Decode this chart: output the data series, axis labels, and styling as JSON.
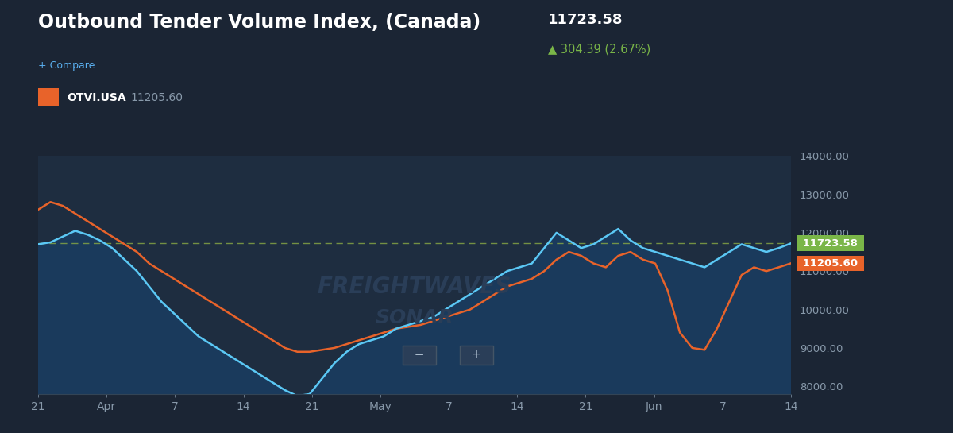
{
  "title": "Outbound Tender Volume Index, (Canada)",
  "title_value": "11723.58",
  "title_change": "▲ 304.39 (2.67%)",
  "legend_compare": "+ Compare...",
  "legend_usa_label": "OTVI.USA",
  "legend_usa_value": "11205.60",
  "bg_color": "#1b2534",
  "plot_bg_color": "#1e2d40",
  "line_canada_color": "#5bc8f5",
  "line_usa_color": "#e8632a",
  "fill_color": "#1a3a5c",
  "dashed_line_color": "#8aaa44",
  "label_canada_color": "#7ab648",
  "label_usa_color": "#e8632a",
  "watermark_color": "#2a3e58",
  "y_min": 7800,
  "y_max": 14000,
  "dashed_line_y": 11723.58,
  "x_ticks_labels": [
    "21",
    "Apr",
    "7",
    "14",
    "21",
    "May",
    "7",
    "14",
    "21",
    "Jun",
    "7",
    "14"
  ],
  "canada_values": [
    11700,
    11750,
    11900,
    12050,
    11950,
    11800,
    11600,
    11300,
    11000,
    10600,
    10200,
    9900,
    9600,
    9300,
    9100,
    8900,
    8700,
    8500,
    8300,
    8100,
    7900,
    7750,
    7800,
    8200,
    8600,
    8900,
    9100,
    9200,
    9300,
    9500,
    9600,
    9700,
    9800,
    10000,
    10200,
    10400,
    10600,
    10800,
    11000,
    11100,
    11200,
    11600,
    12000,
    11800,
    11600,
    11700,
    11900,
    12100,
    11800,
    11600,
    11500,
    11400,
    11300,
    11200,
    11100,
    11300,
    11500,
    11700,
    11600,
    11500,
    11600,
    11723
  ],
  "usa_values": [
    12600,
    12800,
    12700,
    12500,
    12300,
    12100,
    11900,
    11700,
    11500,
    11200,
    11000,
    10800,
    10600,
    10400,
    10200,
    10000,
    9800,
    9600,
    9400,
    9200,
    9000,
    8900,
    8900,
    8950,
    9000,
    9100,
    9200,
    9300,
    9400,
    9500,
    9550,
    9600,
    9700,
    9800,
    9900,
    10000,
    10200,
    10400,
    10600,
    10700,
    10800,
    11000,
    11300,
    11500,
    11400,
    11200,
    11100,
    11400,
    11500,
    11300,
    11200,
    10500,
    9400,
    9000,
    8950,
    9500,
    10200,
    10900,
    11100,
    11000,
    11100,
    11205
  ]
}
